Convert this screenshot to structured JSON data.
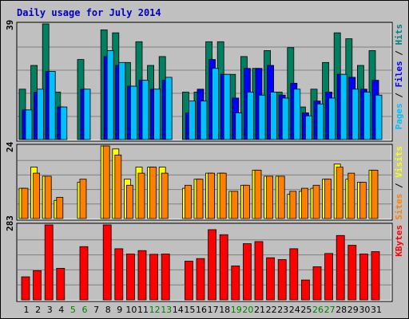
{
  "chart_data": [
    {
      "panel": "hits",
      "type": "bar",
      "title": "Daily usage for July 2014",
      "y_max_label": "39",
      "ylim": [
        0,
        39
      ],
      "legend": [
        {
          "text": "Pages",
          "color": "#00c0ff"
        },
        {
          "text": " / ",
          "color": "#000000"
        },
        {
          "text": "Files",
          "color": "#0000ff"
        },
        {
          "text": " / ",
          "color": "#000000"
        },
        {
          "text": "Hits",
          "color": "#008080"
        }
      ],
      "categories": [
        "1",
        "2",
        "3",
        "4",
        "5",
        "6",
        "7",
        "8",
        "9",
        "10",
        "11",
        "12",
        "13",
        "14",
        "15",
        "16",
        "17",
        "18",
        "19",
        "20",
        "21",
        "22",
        "23",
        "24",
        "25",
        "26",
        "27",
        "28",
        "29",
        "30",
        "31"
      ],
      "series": [
        {
          "name": "Hits",
          "color": "#008060",
          "values": [
            17,
            25,
            39,
            16,
            0,
            27,
            0,
            37,
            36,
            26,
            33,
            25,
            28,
            0,
            16,
            16,
            33,
            33,
            22,
            28,
            24,
            30,
            16,
            31,
            11,
            17,
            26,
            36,
            34,
            25,
            30
          ]
        },
        {
          "name": "Files",
          "color": "#0000ff",
          "values": [
            10,
            16,
            23,
            11,
            0,
            17,
            0,
            28,
            25,
            18,
            20,
            17,
            20,
            0,
            9,
            17,
            27,
            22,
            14,
            24,
            24,
            25,
            15,
            19,
            9,
            13,
            16,
            22,
            21,
            17,
            20
          ]
        },
        {
          "name": "Pages",
          "color": "#00c0ff",
          "values": [
            10,
            17,
            23,
            11,
            0,
            17,
            0,
            30,
            26,
            18,
            20,
            17,
            21,
            0,
            13,
            13,
            24,
            22,
            9,
            16,
            15,
            16,
            14,
            17,
            8,
            12,
            14,
            22,
            17,
            16,
            15
          ]
        }
      ]
    },
    {
      "panel": "visits",
      "type": "bar",
      "y_max_label": "24",
      "ylim": [
        0,
        24
      ],
      "legend": [
        {
          "text": "Sites",
          "color": "#ff8000"
        },
        {
          "text": " / ",
          "color": "#000000"
        },
        {
          "text": "Visits",
          "color": "#ffff00"
        }
      ],
      "series": [
        {
          "name": "Visits",
          "color": "#ffff00",
          "values": [
            10,
            17,
            14,
            6,
            0,
            12,
            0,
            24,
            23,
            13,
            17,
            17,
            17,
            0,
            10,
            13,
            15,
            15,
            9,
            11,
            16,
            14,
            14,
            8,
            9,
            10,
            13,
            18,
            13,
            12,
            16
          ]
        },
        {
          "name": "Sites",
          "color": "#ff8000",
          "values": [
            10,
            15,
            14,
            7,
            0,
            13,
            0,
            24,
            21,
            11,
            15,
            17,
            15,
            0,
            11,
            13,
            15,
            15,
            9,
            11,
            16,
            14,
            14,
            9,
            10,
            11,
            13,
            17,
            15,
            12,
            16
          ]
        }
      ]
    },
    {
      "panel": "kbytes",
      "type": "bar",
      "y_max_label": "283",
      "ylim": [
        0,
        283
      ],
      "legend": [
        {
          "text": "KBytes",
          "color": "#ff0000"
        }
      ],
      "series": [
        {
          "name": "KBytes",
          "color": "#ff0000",
          "values": [
            87,
            110,
            283,
            119,
            0,
            201,
            0,
            283,
            193,
            173,
            186,
            172,
            173,
            0,
            146,
            156,
            265,
            246,
            128,
            212,
            220,
            159,
            152,
            193,
            75,
            125,
            175,
            243,
            206,
            173,
            182
          ]
        }
      ]
    }
  ],
  "weekend_days": [
    5,
    6,
    12,
    13,
    19,
    20,
    26,
    27
  ],
  "colors": {
    "background": "#c0c0c0",
    "grid": "#000000",
    "title": "#0000c0",
    "weekday_label": "#000000",
    "weekend_label": "#008000"
  }
}
